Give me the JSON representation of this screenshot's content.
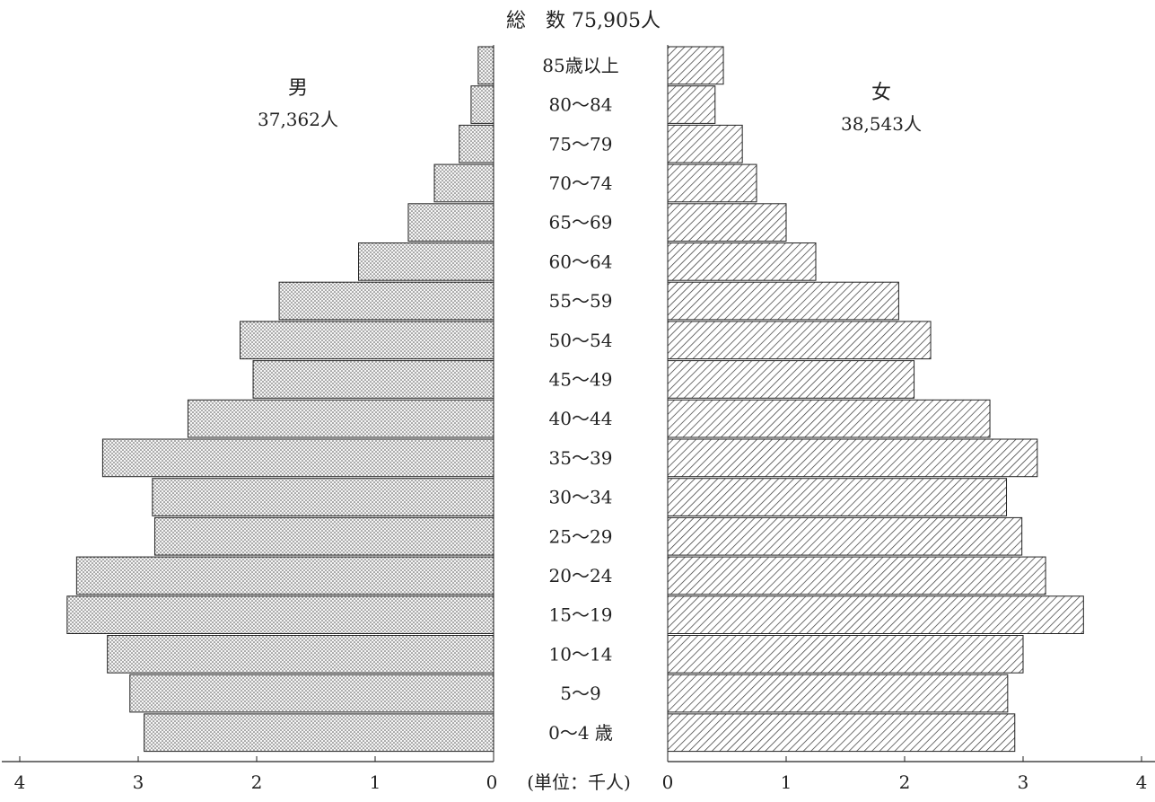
{
  "chart_data": {
    "type": "bar",
    "title": "総　数 75,905人",
    "unit_label": "(単位：千人)",
    "orientation": "horizontal-population-pyramid",
    "categories": [
      "85歳以上",
      "80～84",
      "75～79",
      "70～74",
      "65～69",
      "60～64",
      "55～59",
      "50～54",
      "45～49",
      "40～44",
      "35～39",
      "30～34",
      "25～29",
      "20～24",
      "15～19",
      "10～14",
      "5～9",
      "0～4 歳"
    ],
    "series": [
      {
        "name": "男",
        "total_label": "37,362人",
        "color": "#d8d8d8",
        "pattern": "dots",
        "values": [
          0.13,
          0.19,
          0.29,
          0.5,
          0.72,
          1.14,
          1.81,
          2.14,
          2.03,
          2.58,
          3.3,
          2.88,
          2.86,
          3.52,
          3.6,
          3.26,
          3.07,
          2.95
        ]
      },
      {
        "name": "女",
        "total_label": "38,543人",
        "color": "#ffffff",
        "pattern": "hatch",
        "values": [
          0.47,
          0.4,
          0.63,
          0.75,
          1.0,
          1.25,
          1.95,
          2.22,
          2.08,
          2.72,
          3.12,
          2.86,
          2.99,
          3.19,
          3.51,
          3.0,
          2.87,
          2.93
        ]
      }
    ],
    "xlim": [
      0,
      4
    ],
    "ticks": [
      "0",
      "1",
      "2",
      "3",
      "4"
    ],
    "grid": false,
    "legend": "none"
  }
}
